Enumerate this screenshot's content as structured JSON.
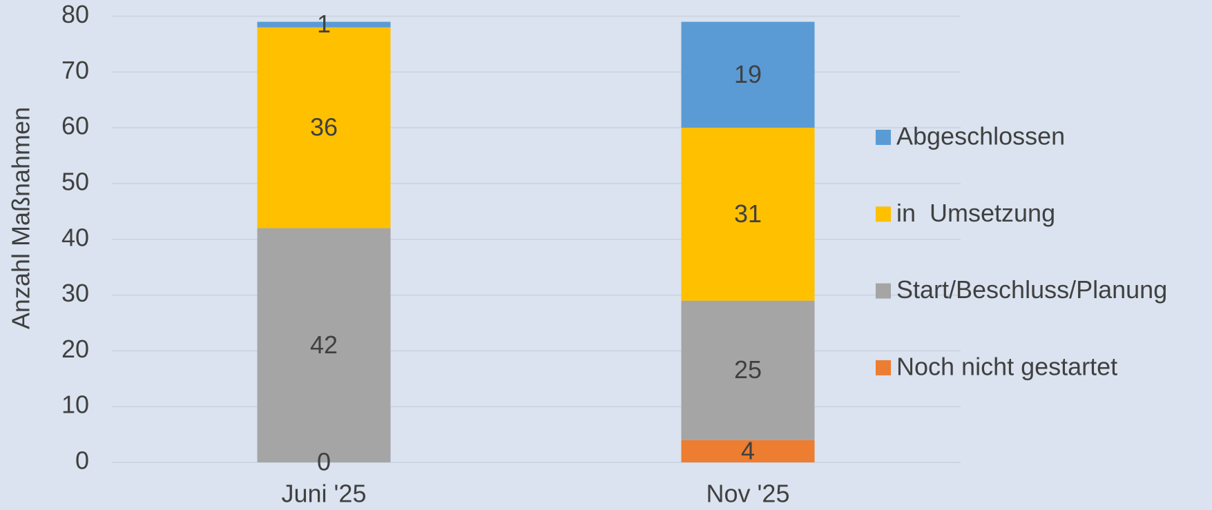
{
  "chart_data": {
    "type": "stacked_bar",
    "y_axis_label": "Anzahl Maßnahmen",
    "categories": [
      "Juni '25",
      "Nov '25"
    ],
    "series": [
      {
        "name": "Noch nicht gestartet",
        "color": "#ED7D31",
        "values": [
          0,
          4
        ]
      },
      {
        "name": "Start/Beschluss/Planung",
        "color": "#A5A5A5",
        "values": [
          42,
          25
        ]
      },
      {
        "name": "in  Umsetzung",
        "color": "#FFC000",
        "values": [
          36,
          31
        ]
      },
      {
        "name": "Abgeschlossen",
        "color": "#5B9BD5",
        "values": [
          1,
          19
        ]
      }
    ],
    "ylim": [
      0,
      80
    ],
    "yticks": [
      0,
      10,
      20,
      30,
      40,
      50,
      60,
      70,
      80
    ],
    "grid": true,
    "legend": "right"
  }
}
